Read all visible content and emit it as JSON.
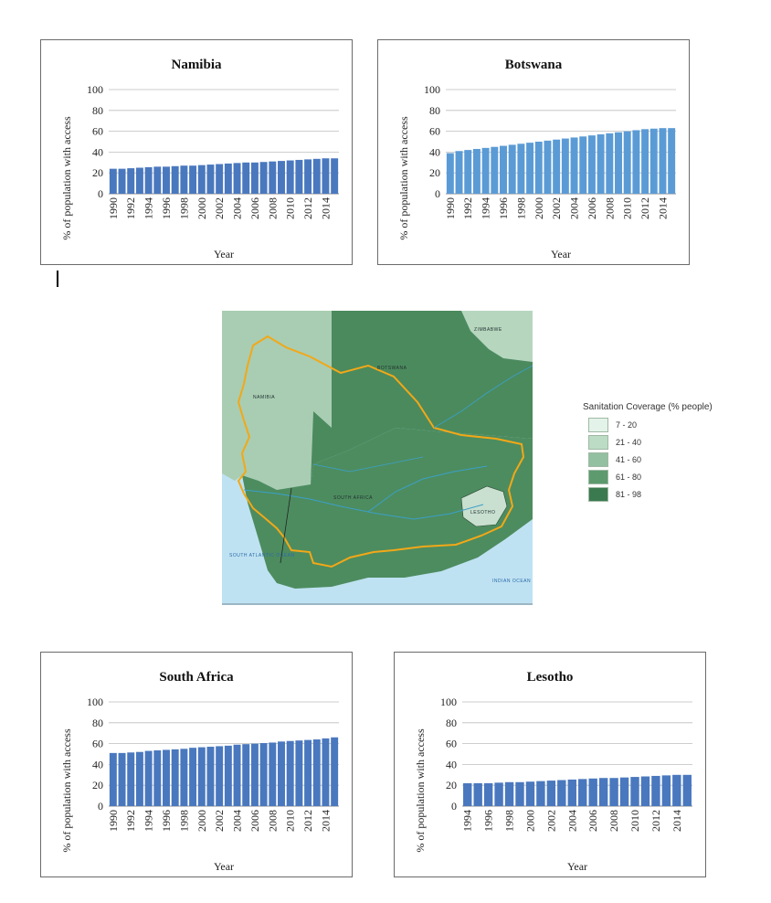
{
  "chart_data": [
    {
      "type": "bar",
      "title": "Namibia",
      "xlabel": "Year",
      "ylabel": "% of population with access",
      "ylim": [
        0,
        100
      ],
      "yticks": [
        "0",
        "20",
        "40",
        "60",
        "80",
        "100"
      ],
      "x": [
        1990,
        1991,
        1992,
        1993,
        1994,
        1995,
        1996,
        1997,
        1998,
        1999,
        2000,
        2001,
        2002,
        2003,
        2004,
        2005,
        2006,
        2007,
        2008,
        2009,
        2010,
        2011,
        2012,
        2013,
        2014,
        2015
      ],
      "xticklabels": [
        "1990",
        "1992",
        "1994",
        "1996",
        "1998",
        "2000",
        "2002",
        "2004",
        "2006",
        "2008",
        "2010",
        "2012",
        "2014"
      ],
      "values": [
        24,
        24,
        24.5,
        25,
        25.5,
        26,
        26,
        26.5,
        27,
        27,
        27.5,
        28,
        28.5,
        29,
        29.5,
        30,
        30,
        30.5,
        31,
        31.5,
        32,
        32.5,
        33,
        33.5,
        34,
        34
      ],
      "grid": "horizontal",
      "color": "#4a78be"
    },
    {
      "type": "bar",
      "title": "Botswana",
      "xlabel": "Year",
      "ylabel": "% of population with access",
      "ylim": [
        0,
        100
      ],
      "yticks": [
        "0",
        "20",
        "40",
        "60",
        "80",
        "100"
      ],
      "x": [
        1990,
        1991,
        1992,
        1993,
        1994,
        1995,
        1996,
        1997,
        1998,
        1999,
        2000,
        2001,
        2002,
        2003,
        2004,
        2005,
        2006,
        2007,
        2008,
        2009,
        2010,
        2011,
        2012,
        2013,
        2014,
        2015
      ],
      "xticklabels": [
        "1990",
        "1992",
        "1994",
        "1996",
        "1998",
        "2000",
        "2002",
        "2004",
        "2006",
        "2008",
        "2010",
        "2012",
        "2014"
      ],
      "values": [
        39,
        41,
        42,
        43,
        44,
        45,
        46,
        47,
        48,
        49,
        50,
        51,
        52,
        53,
        54,
        55,
        56,
        57,
        58,
        59,
        60,
        61,
        62,
        62.5,
        63,
        63
      ],
      "grid": "horizontal",
      "color": "#5b9bd5"
    },
    {
      "type": "bar",
      "title": "South Africa",
      "xlabel": "Year",
      "ylabel": "% of population with access",
      "ylim": [
        0,
        100
      ],
      "yticks": [
        "0",
        "20",
        "40",
        "60",
        "80",
        "100"
      ],
      "x": [
        1990,
        1991,
        1992,
        1993,
        1994,
        1995,
        1996,
        1997,
        1998,
        1999,
        2000,
        2001,
        2002,
        2003,
        2004,
        2005,
        2006,
        2007,
        2008,
        2009,
        2010,
        2011,
        2012,
        2013,
        2014,
        2015
      ],
      "xticklabels": [
        "1990",
        "1992",
        "1994",
        "1996",
        "1998",
        "2000",
        "2002",
        "2004",
        "2006",
        "2008",
        "2010",
        "2012",
        "2014"
      ],
      "values": [
        51,
        51,
        51.5,
        52,
        53,
        53.5,
        54,
        54.5,
        55,
        56,
        56.5,
        57,
        57.5,
        58,
        59,
        59.5,
        60,
        60.5,
        61,
        62,
        62.5,
        63,
        63.5,
        64,
        65,
        66
      ],
      "grid": "horizontal",
      "color": "#4a78be"
    },
    {
      "type": "bar",
      "title": "Lesotho",
      "xlabel": "Year",
      "ylabel": "% of population with access",
      "ylim": [
        0,
        100
      ],
      "yticks": [
        "0",
        "20",
        "40",
        "60",
        "80",
        "100"
      ],
      "x": [
        1994,
        1995,
        1996,
        1997,
        1998,
        1999,
        2000,
        2001,
        2002,
        2003,
        2004,
        2005,
        2006,
        2007,
        2008,
        2009,
        2010,
        2011,
        2012,
        2013,
        2014,
        2015
      ],
      "xticklabels": [
        "1994",
        "1996",
        "1998",
        "2000",
        "2002",
        "2004",
        "2006",
        "2008",
        "2010",
        "2012",
        "2014"
      ],
      "values": [
        22,
        22,
        22,
        22.5,
        23,
        23,
        23.5,
        24,
        24.5,
        25,
        25.5,
        26,
        26.5,
        27,
        27,
        27.5,
        28,
        28.5,
        29,
        29.5,
        30,
        30
      ],
      "grid": "horizontal",
      "color": "#4a78be"
    }
  ],
  "map": {
    "legend_title": "Sanitation Coverage (% people)",
    "legend": [
      {
        "label": "7 - 20",
        "color": "#e4f3e9"
      },
      {
        "label": "21 - 40",
        "color": "#bcdcc6"
      },
      {
        "label": "41 - 60",
        "color": "#93c0a0"
      },
      {
        "label": "61 - 80",
        "color": "#5d9a6e"
      },
      {
        "label": "81 - 98",
        "color": "#3b7a4f"
      }
    ],
    "country_labels": {
      "namibia": "NAMIBIA",
      "botswana": "BOTSWANA",
      "south_africa": "SOUTH AFRICA",
      "lesotho": "LESOTHO",
      "zimbabwe": "ZIMBABWE"
    },
    "ocean_labels": {
      "atlantic": "SOUTH ATLANTIC OCEAN",
      "indian": "INDIAN OCEAN"
    },
    "colors": {
      "ocean": "#bfe2f2",
      "namibia": "#a9cdb2",
      "botswana": "#4b8a5d",
      "south_africa": "#4d8c5f",
      "lesotho": "#c9dfd0",
      "zimbabwe": "#b6d6be",
      "basin_outline": "#f2a818",
      "river": "#3ba0c8"
    }
  }
}
